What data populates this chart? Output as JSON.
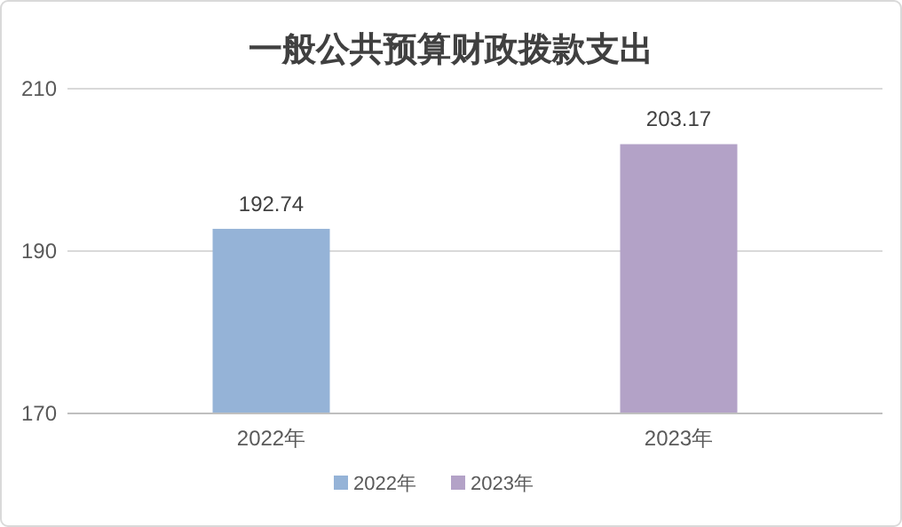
{
  "chart_data": {
    "type": "bar",
    "title": "一般公共预算财政拨款支出",
    "categories": [
      "2022年",
      "2023年"
    ],
    "series": [
      {
        "name": "2022年",
        "color": "#95b3d7",
        "values": [
          192.74,
          null
        ]
      },
      {
        "name": "2023年",
        "color": "#b3a2c7",
        "values": [
          null,
          203.17
        ]
      }
    ],
    "ylim": [
      170,
      210
    ],
    "yticks": [
      170,
      190,
      210
    ],
    "grid": "y",
    "legend": "bottom",
    "data_labels": true
  }
}
